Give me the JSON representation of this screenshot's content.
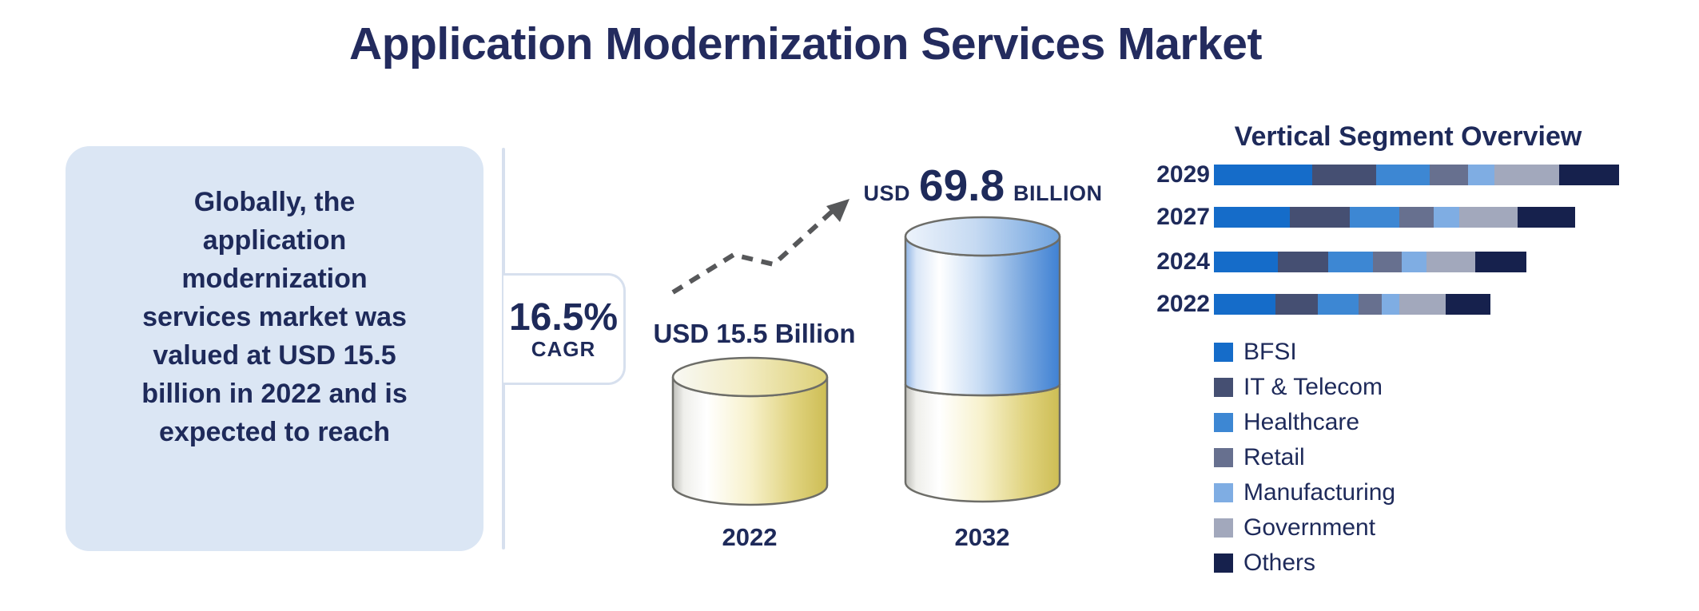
{
  "title": "Application Modernization Services Market",
  "summary_box": {
    "full_text": "Globally, the application modernization services market was valued at USD 15.5 billion in 2022 and is expected to reach",
    "lines": [
      "Globally, the",
      "application",
      "modernization",
      "services market was",
      "valued at USD 15.5",
      "billion in 2022 and is",
      "expected to reach"
    ]
  },
  "cagr": {
    "value": "16.5%",
    "label": "CAGR"
  },
  "growth": {
    "start_label": "USD 15.5 Billion",
    "start_year": "2022",
    "end_prefix": "USD",
    "end_value": "69.8",
    "end_suffix": "BILLION",
    "end_year": "2032"
  },
  "colors": {
    "navy_text": "#1E2A5A",
    "title_navy": "#232B5E",
    "summary_box_bg": "#DBE6F4",
    "bracket_line": "#D7E0EE",
    "arrow_gray": "#57585A",
    "cylinder_gold": "#CDBD54",
    "cylinder_blue": "#3F81D4",
    "cylinder_outline": "#6D6D68"
  },
  "chart_data": [
    {
      "id": "market_size",
      "type": "bar",
      "title": "Application Modernization Services Market size",
      "categories": [
        "2022",
        "2032"
      ],
      "values": [
        15.5,
        69.8
      ],
      "unit": "USD billion",
      "cagr_percent": 16.5,
      "annotations": [
        "USD 15.5 Billion",
        "USD 69.8 BILLION",
        "16.5% CAGR"
      ]
    },
    {
      "id": "vertical_segment_overview",
      "type": "bar",
      "orientation": "horizontal",
      "stacked": true,
      "title": "Vertical Segment Overview",
      "categories": [
        "2029",
        "2027",
        "2024",
        "2022"
      ],
      "value_note": "relative segment widths in px as drawn; no numeric axis shown",
      "legend_position": "bottom-left",
      "series": [
        {
          "name": "BFSI",
          "color": "#156CC9",
          "values": [
            123,
            95,
            80,
            77
          ]
        },
        {
          "name": "IT & Telecom",
          "color": "#454F72",
          "values": [
            80,
            75,
            63,
            53
          ]
        },
        {
          "name": "Healthcare",
          "color": "#3D87D3",
          "values": [
            67,
            62,
            56,
            51
          ]
        },
        {
          "name": "Retail",
          "color": "#67708F",
          "values": [
            48,
            43,
            36,
            29
          ]
        },
        {
          "name": "Manufacturing",
          "color": "#7FADE3",
          "values": [
            33,
            32,
            31,
            22
          ]
        },
        {
          "name": "Government",
          "color": "#A2A8BC",
          "values": [
            81,
            73,
            61,
            58
          ]
        },
        {
          "name": "Others",
          "color": "#16214D",
          "values": [
            75,
            72,
            64,
            56
          ]
        }
      ]
    }
  ]
}
